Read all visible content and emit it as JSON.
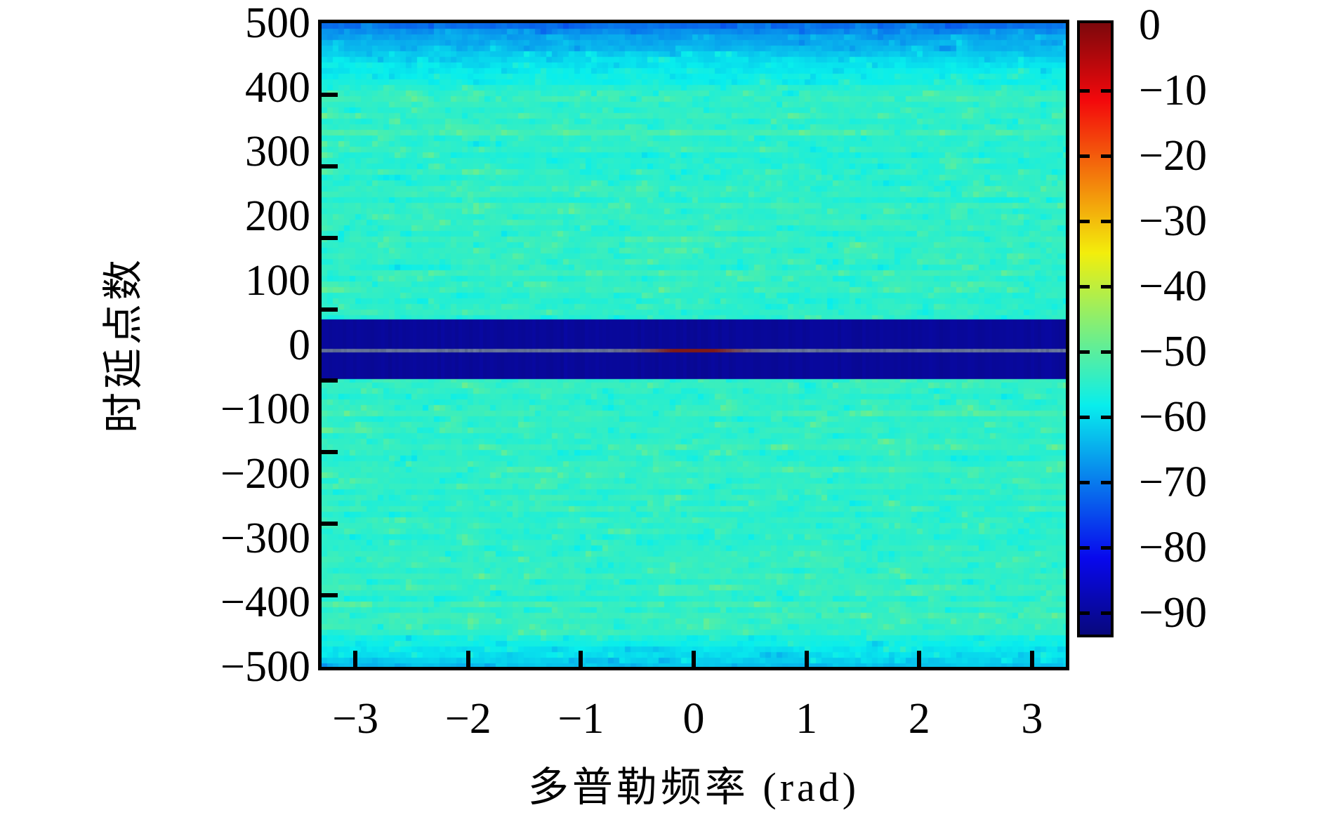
{
  "figure": {
    "background_color": "#ffffff",
    "frame_color": "#000000"
  },
  "chart_data": {
    "type": "heatmap",
    "title": "",
    "xlabel": "多普勒频率 (rad)",
    "ylabel": "时延点数",
    "xlim": [
      -3.3,
      3.3
    ],
    "ylim": [
      -500,
      500
    ],
    "grid": false,
    "legend": "none",
    "x_ticks": {
      "values": [
        -3,
        -2,
        -1,
        0,
        1,
        2,
        3
      ],
      "labels": [
        "−3",
        "−2",
        "−1",
        "0",
        "1",
        "2",
        "3"
      ]
    },
    "y_ticks": {
      "values": [
        500,
        400,
        300,
        200,
        100,
        0,
        -100,
        -200,
        -300,
        -400,
        -500
      ],
      "labels": [
        "500",
        "400",
        "300",
        "200",
        "100",
        "0",
        "−100",
        "−200",
        "−300",
        "−400",
        "−500"
      ]
    },
    "colorbar": {
      "colormap": "jet",
      "vmax": 0,
      "vmin": -93,
      "tick_values": [
        0,
        -10,
        -20,
        -30,
        -40,
        -50,
        -60,
        -70,
        -80,
        -90
      ],
      "tick_labels": [
        "0",
        "−10",
        "−20",
        "−30",
        "−40",
        "−50",
        "−60",
        "−70",
        "−80",
        "−90"
      ]
    },
    "surface": {
      "description": "Doppler-delay cross-ambiguity surface in dB: cyan-green speckle noise floor near −54 dB over the whole plane; darker blue fade at the top edge (delay near +500) and slightly bluer bottom edge; a dark navy blanked band (≈ −90 dB) across all Doppler for delays between −53 and +40; inside it a thin grey zero-delay ridge line at delay ≈ −8 that turns dark red (correlation peak ≈ −4 dB) around Doppler 0",
      "noise_floor_db": -54.5,
      "noise_std_db": 2.3,
      "green_patch_db_boost": 4.5,
      "blanked_band": {
        "delay_top": 40,
        "delay_bottom": -53,
        "level_db": -90.5
      },
      "zero_delay_line": {
        "delay": -8,
        "level_db": -72
      },
      "peak": {
        "doppler_rad": 0,
        "delay": -8,
        "level_db": -4,
        "doppler_halfwidth_rad": 0.35
      }
    }
  }
}
